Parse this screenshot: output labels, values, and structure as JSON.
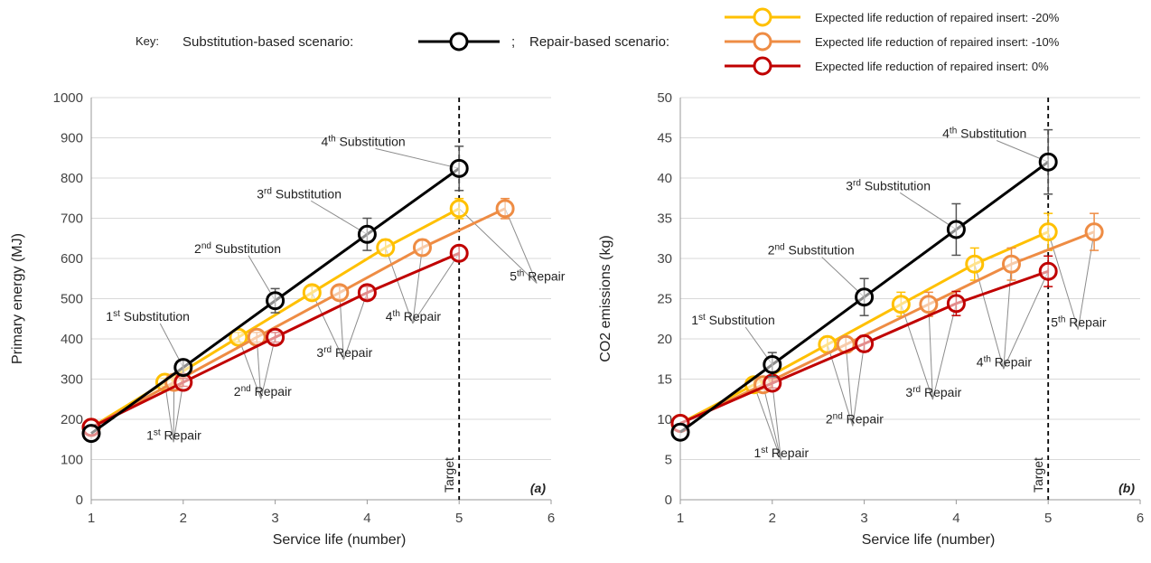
{
  "legend": {
    "key_label": "Key:",
    "substitution_label": "Substitution-based scenario:",
    "separator": ";",
    "repair_label": "Repair-based scenario:",
    "substitution_color": "#000000",
    "entries": [
      {
        "label": "Expected life reduction of repaired insert: -20%",
        "color": "#FFC000"
      },
      {
        "label": "Expected life reduction of repaired insert: -10%",
        "color": "#EE8C44"
      },
      {
        "label": "Expected life reduction of repaired insert: 0%",
        "color": "#C00000"
      }
    ]
  },
  "chart_data": [
    {
      "type": "line",
      "panel_label": "(a)",
      "ylabel": "Primary energy (MJ)",
      "xlabel": "Service life (number)",
      "xlim": [
        1,
        6
      ],
      "ylim": [
        0,
        1000
      ],
      "xticks": [
        1,
        2,
        3,
        4,
        5,
        6
      ],
      "yticks": [
        0,
        100,
        200,
        300,
        400,
        500,
        600,
        700,
        800,
        900,
        1000
      ],
      "grid": "horizontal",
      "target": {
        "x": 5,
        "label": "Target"
      },
      "series": [
        {
          "color": "#FFC000",
          "x": [
            1,
            1.8,
            2.6,
            3.4,
            4.2,
            5
          ],
          "y": [
            180,
            292,
            404,
            515,
            627,
            724
          ],
          "err": [
            0,
            10,
            12,
            15,
            20,
            25
          ]
        },
        {
          "color": "#EE8C44",
          "x": [
            1,
            1.9,
            2.8,
            3.7,
            4.6,
            5.5
          ],
          "y": [
            180,
            292,
            404,
            515,
            627,
            724
          ],
          "err": [
            0,
            10,
            12,
            15,
            20,
            25
          ]
        },
        {
          "color": "#C00000",
          "x": [
            1,
            2,
            3,
            4,
            5
          ],
          "y": [
            180,
            292,
            404,
            515,
            613
          ],
          "err": [
            0,
            10,
            12,
            15,
            18
          ]
        },
        {
          "color": "#000000",
          "x": [
            1,
            2,
            3,
            4,
            5
          ],
          "y": [
            165,
            329,
            495,
            660,
            824
          ],
          "err": [
            0,
            18,
            30,
            40,
            55
          ]
        }
      ],
      "annotations": [
        {
          "num": "4",
          "sup": "th",
          "text": " Substitution",
          "tx": 3.5,
          "ty": 880,
          "points": [
            [
              5,
              824
            ]
          ]
        },
        {
          "num": "3",
          "sup": "rd",
          "text": " Substitution",
          "tx": 2.8,
          "ty": 750,
          "points": [
            [
              4,
              660
            ]
          ]
        },
        {
          "num": "2",
          "sup": "nd",
          "text": " Substitution",
          "tx": 2.12,
          "ty": 614,
          "points": [
            [
              3,
              495
            ]
          ]
        },
        {
          "num": "1",
          "sup": "st",
          "text": " Substitution",
          "tx": 1.16,
          "ty": 445,
          "points": [
            [
              2,
              329
            ]
          ]
        },
        {
          "num": "5",
          "sup": "th",
          "text": " Repair",
          "tx": 5.55,
          "ty": 545,
          "points": [
            [
              5,
              724
            ],
            [
              5.5,
              724
            ]
          ]
        },
        {
          "num": "4",
          "sup": "th",
          "text": " Repair",
          "tx": 4.2,
          "ty": 445,
          "points": [
            [
              4.2,
              627
            ],
            [
              4.6,
              627
            ],
            [
              5,
              613
            ]
          ]
        },
        {
          "num": "3",
          "sup": "rd",
          "text": " Repair",
          "tx": 3.45,
          "ty": 355,
          "points": [
            [
              3.4,
              515
            ],
            [
              3.7,
              515
            ],
            [
              4,
              515
            ]
          ]
        },
        {
          "num": "2",
          "sup": "nd",
          "text": " Repair",
          "tx": 2.55,
          "ty": 258,
          "points": [
            [
              2.6,
              404
            ],
            [
              2.8,
              404
            ],
            [
              3,
              404
            ]
          ]
        },
        {
          "num": "1",
          "sup": "st",
          "text": " Repair",
          "tx": 1.6,
          "ty": 150,
          "points": [
            [
              1.8,
              292
            ],
            [
              1.9,
              292
            ],
            [
              2,
              292
            ]
          ]
        }
      ]
    },
    {
      "type": "line",
      "panel_label": "(b)",
      "ylabel": "CO2 emissions (kg)",
      "xlabel": "Service life (number)",
      "xlim": [
        1,
        6
      ],
      "ylim": [
        0,
        50
      ],
      "xticks": [
        1,
        2,
        3,
        4,
        5,
        6
      ],
      "yticks": [
        0,
        5,
        10,
        15,
        20,
        25,
        30,
        35,
        40,
        45,
        50
      ],
      "grid": "horizontal",
      "target": {
        "x": 5,
        "label": "Target"
      },
      "series": [
        {
          "color": "#FFC000",
          "x": [
            1,
            1.8,
            2.6,
            3.4,
            4.2,
            5
          ],
          "y": [
            9.5,
            14.3,
            19.3,
            24.3,
            29.3,
            33.3
          ],
          "err": [
            0,
            0.6,
            1,
            1.5,
            2,
            2.3
          ]
        },
        {
          "color": "#EE8C44",
          "x": [
            1,
            1.9,
            2.8,
            3.7,
            4.6,
            5.5
          ],
          "y": [
            9.5,
            14.3,
            19.3,
            24.3,
            29.3,
            33.3
          ],
          "err": [
            0,
            0.6,
            1,
            1.5,
            2,
            2.3
          ]
        },
        {
          "color": "#C00000",
          "x": [
            1,
            2,
            3,
            4,
            5
          ],
          "y": [
            9.5,
            14.5,
            19.4,
            24.4,
            28.4
          ],
          "err": [
            0,
            0.6,
            1,
            1.5,
            1.9
          ]
        },
        {
          "color": "#000000",
          "x": [
            1,
            2,
            3,
            4,
            5
          ],
          "y": [
            8.4,
            16.8,
            25.2,
            33.6,
            42
          ],
          "err": [
            0,
            1.5,
            2.3,
            3.2,
            4
          ]
        }
      ],
      "annotations": [
        {
          "num": "4",
          "sup": "th",
          "text": " Substitution",
          "tx": 3.85,
          "ty": 45,
          "points": [
            [
              5,
              42
            ]
          ]
        },
        {
          "num": "3",
          "sup": "rd",
          "text": " Substitution",
          "tx": 2.8,
          "ty": 38.5,
          "points": [
            [
              4,
              33.6
            ]
          ]
        },
        {
          "num": "2",
          "sup": "nd",
          "text": " Substitution",
          "tx": 1.95,
          "ty": 30.5,
          "points": [
            [
              3,
              25.2
            ]
          ]
        },
        {
          "num": "1",
          "sup": "st",
          "text": " Substitution",
          "tx": 1.12,
          "ty": 21.8,
          "points": [
            [
              2,
              16.8
            ]
          ]
        },
        {
          "num": "5",
          "sup": "th",
          "text": " Repair",
          "tx": 5.03,
          "ty": 21.5,
          "points": [
            [
              5,
              33.3
            ],
            [
              5.5,
              33.3
            ]
          ]
        },
        {
          "num": "4",
          "sup": "th",
          "text": " Repair",
          "tx": 4.22,
          "ty": 16.6,
          "points": [
            [
              4.2,
              29.3
            ],
            [
              4.6,
              29.3
            ],
            [
              5,
              28.4
            ]
          ]
        },
        {
          "num": "3",
          "sup": "rd",
          "text": " Repair",
          "tx": 3.45,
          "ty": 12.8,
          "points": [
            [
              3.4,
              24.3
            ],
            [
              3.7,
              24.3
            ],
            [
              4,
              24.4
            ]
          ]
        },
        {
          "num": "2",
          "sup": "nd",
          "text": " Repair",
          "tx": 2.58,
          "ty": 9.5,
          "points": [
            [
              2.6,
              19.3
            ],
            [
              2.8,
              19.3
            ],
            [
              3,
              19.4
            ]
          ]
        },
        {
          "num": "1",
          "sup": "st",
          "text": " Repair",
          "tx": 1.8,
          "ty": 5.3,
          "points": [
            [
              1.8,
              14.3
            ],
            [
              1.9,
              14.3
            ],
            [
              2,
              14.5
            ]
          ]
        }
      ]
    }
  ]
}
